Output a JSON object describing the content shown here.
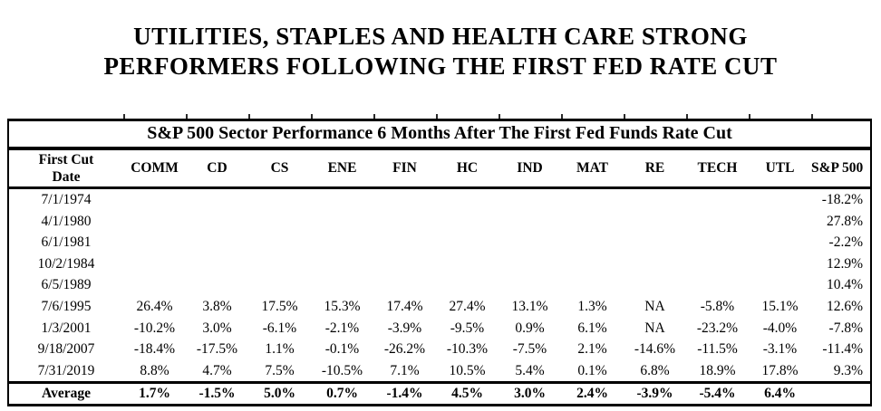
{
  "heading": {
    "line1": "UTILITIES, STAPLES AND HEALTH CARE STRONG",
    "line2": "PERFORMERS FOLLOWING THE FIRST FED RATE CUT"
  },
  "chart_data": {
    "type": "table",
    "title": "S&P 500 Sector Performance 6 Months After The First Fed Funds Rate Cut",
    "header": {
      "first_line1": "First Cut",
      "first_line2": "Date",
      "sectors": [
        "COMM",
        "CD",
        "CS",
        "ENE",
        "FIN",
        "HC",
        "IND",
        "MAT",
        "RE",
        "TECH",
        "UTL"
      ],
      "sp": "S&P 500"
    },
    "rows": [
      {
        "date": "7/1/1974",
        "values": [
          "",
          "",
          "",
          "",
          "",
          "",
          "",
          "",
          "",
          "",
          ""
        ],
        "sp": "-18.2%"
      },
      {
        "date": "4/1/1980",
        "values": [
          "",
          "",
          "",
          "",
          "",
          "",
          "",
          "",
          "",
          "",
          ""
        ],
        "sp": "27.8%"
      },
      {
        "date": "6/1/1981",
        "values": [
          "",
          "",
          "",
          "",
          "",
          "",
          "",
          "",
          "",
          "",
          ""
        ],
        "sp": "-2.2%"
      },
      {
        "date": "10/2/1984",
        "values": [
          "",
          "",
          "",
          "",
          "",
          "",
          "",
          "",
          "",
          "",
          ""
        ],
        "sp": "12.9%"
      },
      {
        "date": "6/5/1989",
        "values": [
          "",
          "",
          "",
          "",
          "",
          "",
          "",
          "",
          "",
          "",
          ""
        ],
        "sp": "10.4%"
      },
      {
        "date": "7/6/1995",
        "values": [
          "26.4%",
          "3.8%",
          "17.5%",
          "15.3%",
          "17.4%",
          "27.4%",
          "13.1%",
          "1.3%",
          "NA",
          "-5.8%",
          "15.1%"
        ],
        "sp": "12.6%"
      },
      {
        "date": "1/3/2001",
        "values": [
          "-10.2%",
          "3.0%",
          "-6.1%",
          "-2.1%",
          "-3.9%",
          "-9.5%",
          "0.9%",
          "6.1%",
          "NA",
          "-23.2%",
          "-4.0%"
        ],
        "sp": "-7.8%"
      },
      {
        "date": "9/18/2007",
        "values": [
          "-18.4%",
          "-17.5%",
          "1.1%",
          "-0.1%",
          "-26.2%",
          "-10.3%",
          "-7.5%",
          "2.1%",
          "-14.6%",
          "-11.5%",
          "-3.1%"
        ],
        "sp": "-11.4%"
      },
      {
        "date": "7/31/2019",
        "values": [
          "8.8%",
          "4.7%",
          "7.5%",
          "-10.5%",
          "7.1%",
          "10.5%",
          "5.4%",
          "0.1%",
          "6.8%",
          "18.9%",
          "17.8%"
        ],
        "sp": "9.3%"
      }
    ],
    "average": {
      "label": "Average",
      "values": [
        "1.7%",
        "-1.5%",
        "5.0%",
        "0.7%",
        "-1.4%",
        "4.5%",
        "3.0%",
        "2.4%",
        "-3.9%",
        "-5.4%",
        "6.4%"
      ],
      "sp": ""
    }
  }
}
